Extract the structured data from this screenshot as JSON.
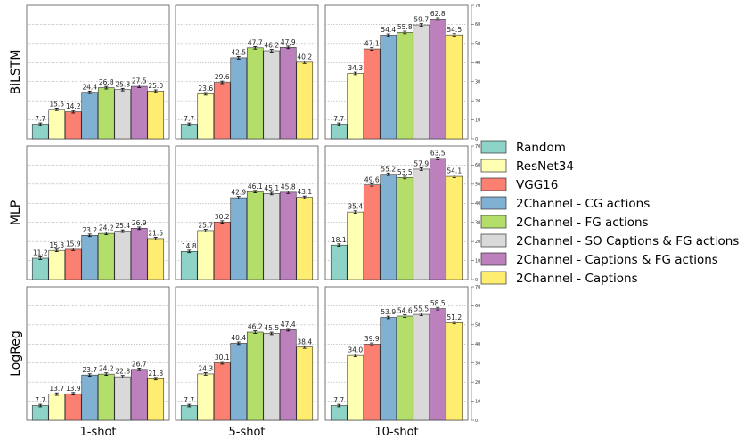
{
  "chart_data": {
    "type": "bar",
    "y_ticks": [
      0,
      10,
      20,
      30,
      40,
      50,
      60,
      70
    ],
    "ylim": [
      0,
      70
    ],
    "grid": true,
    "legend_position": "right",
    "rows": [
      "BiLSTM",
      "MLP",
      "LogReg"
    ],
    "columns": [
      "1-shot",
      "5-shot",
      "10-shot"
    ],
    "series": [
      {
        "name": "Random",
        "color": "#8dd3c7"
      },
      {
        "name": "ResNet34",
        "color": "#ffffb3"
      },
      {
        "name": "VGG16",
        "color": "#fb8072"
      },
      {
        "name": "2Channel - CG actions",
        "color": "#80b1d3"
      },
      {
        "name": "2Channel - FG actions",
        "color": "#b3de69"
      },
      {
        "name": "2Channel - SO Captions & FG actions",
        "color": "#d9d9d9"
      },
      {
        "name": "2Channel - Captions & FG actions",
        "color": "#bc80bd"
      },
      {
        "name": "2Channel - Captions",
        "color": "#ffed6f"
      }
    ],
    "values": [
      [
        [
          "7.7",
          "15.5",
          "14.2",
          "24.4",
          "26.8",
          "25.8",
          "27.5",
          "25.0"
        ],
        [
          "7.7",
          "23.6",
          "29.6",
          "42.5",
          "47.7",
          "46.2",
          "47.9",
          "40.2"
        ],
        [
          "7.7",
          "34.3",
          "47.1",
          "54.4",
          "55.8",
          "59.7",
          "62.8",
          "54.5"
        ]
      ],
      [
        [
          "11.2",
          "15.3",
          "15.9",
          "23.2",
          "24.2",
          "25.4",
          "26.9",
          "21.5"
        ],
        [
          "14.8",
          "25.7",
          "30.2",
          "42.9",
          "46.1",
          "45.1",
          "45.8",
          "43.1"
        ],
        [
          "18.1",
          "35.4",
          "49.6",
          "55.2",
          "53.5",
          "57.9",
          "63.5",
          "54.1"
        ]
      ],
      [
        [
          "7.7",
          "13.7",
          "13.9",
          "23.7",
          "24.2",
          "22.8",
          "26.7",
          "21.8"
        ],
        [
          "7.7",
          "24.3",
          "30.1",
          "40.4",
          "46.2",
          "45.5",
          "47.4",
          "38.4"
        ],
        [
          "7.7",
          "34.0",
          "39.9",
          "53.9",
          "54.6",
          "55.5",
          "58.5",
          "51.2"
        ]
      ]
    ]
  }
}
